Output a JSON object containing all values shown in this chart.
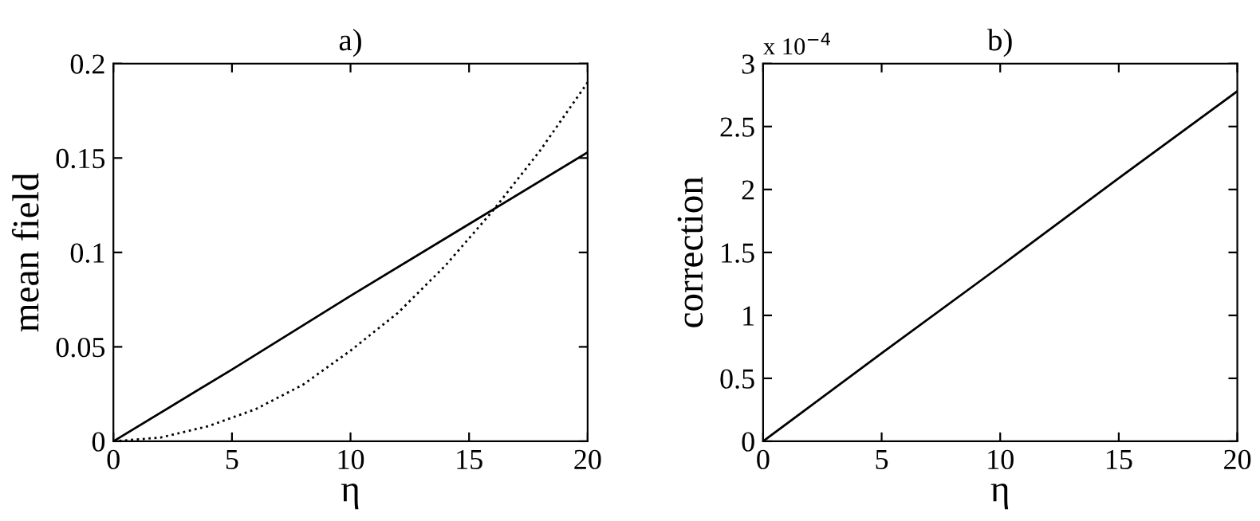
{
  "chart_data": [
    {
      "type": "line",
      "title": "a)",
      "xlabel": "η",
      "ylabel": "mean field",
      "xlim": [
        0,
        20
      ],
      "ylim": [
        0,
        0.2
      ],
      "xticks": [
        0,
        5,
        10,
        15,
        20
      ],
      "yticks": [
        0,
        0.05,
        0.1,
        0.15,
        0.2
      ],
      "series": [
        {
          "color": "#000000",
          "line_style": "solid",
          "x": [
            0,
            5,
            10,
            15,
            20
          ],
          "values": [
            0,
            0.038,
            0.077,
            0.115,
            0.153
          ]
        },
        {
          "color": "#000000",
          "line_style": "dotted",
          "x": [
            0,
            2,
            4,
            6,
            8,
            10,
            12,
            14,
            16,
            18,
            20
          ],
          "values": [
            0,
            0.002,
            0.008,
            0.017,
            0.03,
            0.048,
            0.068,
            0.093,
            0.122,
            0.154,
            0.19
          ]
        }
      ]
    },
    {
      "type": "line",
      "title": "b)",
      "xlabel": "η",
      "ylabel": "correction",
      "xlim": [
        0,
        20
      ],
      "ylim": [
        0,
        3
      ],
      "xticks": [
        0,
        5,
        10,
        15,
        20
      ],
      "yticks": [
        0,
        0.5,
        1,
        1.5,
        2,
        2.5,
        3
      ],
      "annotations": [
        "x 10$^{−4}$"
      ],
      "series": [
        {
          "color": "#000000",
          "line_style": "solid",
          "x": [
            0,
            5,
            10,
            15,
            20
          ],
          "values": [
            0,
            0.7,
            1.39,
            2.09,
            2.78
          ]
        }
      ]
    }
  ]
}
